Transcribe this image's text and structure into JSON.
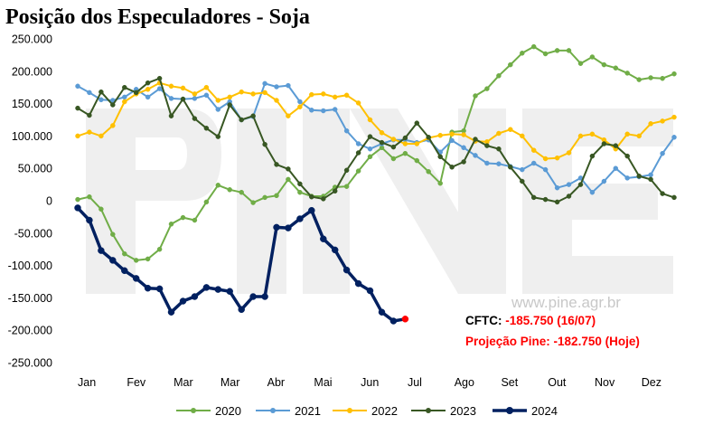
{
  "chart_data": {
    "type": "line",
    "title": "Posição dos Especuladores - Soja",
    "xlabel": "",
    "ylabel": "",
    "ylim": [
      -250000,
      250000
    ],
    "y_ticks": [
      250000,
      200000,
      150000,
      100000,
      50000,
      0,
      -50000,
      -100000,
      -150000,
      -200000,
      -250000
    ],
    "y_tick_labels": [
      "250.000",
      "200.000",
      "150.000",
      "100.000",
      "50.000",
      "0",
      "-50.000",
      "-100.000",
      "-150.000",
      "-200.000",
      "-250.000"
    ],
    "x_range_weeks": [
      1,
      53
    ],
    "month_labels": [
      "Jan",
      "Fev",
      "Mar",
      "Mar",
      "Abr",
      "Mai",
      "Jun",
      "Jul",
      "Ago",
      "Set",
      "Out",
      "Nov",
      "Dez"
    ],
    "month_label_weeks": [
      1,
      5.2,
      9.2,
      13.2,
      17.2,
      21.2,
      25.2,
      29.2,
      33.2,
      37.2,
      41.2,
      45.2,
      49.2
    ],
    "grid": false,
    "legend_position": "bottom",
    "annotations": [
      {
        "text": "CFTC: ",
        "value": "-185.750 (16/07)"
      },
      {
        "text": "Projeção Pine: ",
        "value": "-182.750 (Hoje)"
      }
    ],
    "watermark": {
      "text": "www.pine.agr.br",
      "logo": "PINE"
    },
    "series": [
      {
        "name": "2020",
        "color": "#70ad47",
        "width": 2,
        "marker": 5,
        "x": [
          1,
          2,
          3,
          4,
          5,
          6,
          7,
          8,
          9,
          10,
          11,
          12,
          13,
          14,
          15,
          16,
          17,
          18,
          19,
          20,
          21,
          22,
          23,
          24,
          25,
          26,
          27,
          28,
          29,
          30,
          31,
          32,
          33,
          34,
          35,
          36,
          37,
          38,
          39,
          40,
          41,
          42,
          43,
          44,
          45,
          46,
          47,
          48,
          49,
          50,
          51,
          52
        ],
        "values": [
          2000,
          6000,
          -13000,
          -52000,
          -82000,
          -92000,
          -90000,
          -75000,
          -36000,
          -26000,
          -30000,
          -2000,
          24000,
          17000,
          13000,
          -3000,
          5000,
          8000,
          33000,
          13000,
          7000,
          7000,
          21000,
          22000,
          46000,
          68000,
          82000,
          65000,
          73000,
          62000,
          45000,
          27000,
          106000,
          108000,
          162000,
          173000,
          193000,
          210000,
          228000,
          238000,
          227000,
          232000,
          232000,
          212000,
          222000,
          210000,
          205000,
          197000,
          187000,
          190000,
          189000,
          196000
        ]
      },
      {
        "name": "2021",
        "color": "#5b9bd5",
        "width": 2,
        "marker": 5,
        "x": [
          1,
          2,
          3,
          4,
          5,
          6,
          7,
          8,
          9,
          10,
          11,
          12,
          13,
          14,
          15,
          16,
          17,
          18,
          19,
          20,
          21,
          22,
          23,
          24,
          25,
          26,
          27,
          28,
          29,
          30,
          31,
          32,
          33,
          34,
          35,
          36,
          37,
          38,
          39,
          40,
          41,
          42,
          43,
          44,
          45,
          46,
          47,
          48,
          49,
          50,
          51,
          52
        ],
        "values": [
          177000,
          167000,
          156000,
          155000,
          160000,
          172000,
          160000,
          173000,
          158000,
          157000,
          158000,
          163000,
          141000,
          153000,
          125000,
          130000,
          181000,
          176000,
          178000,
          153000,
          140000,
          139000,
          141000,
          108000,
          88000,
          80000,
          88000,
          94000,
          94000,
          90000,
          94000,
          75000,
          93000,
          82000,
          70000,
          58000,
          57000,
          53000,
          48000,
          58000,
          48000,
          20000,
          25000,
          35000,
          13000,
          30000,
          50000,
          35000,
          37000,
          40000,
          73000,
          98000
        ]
      },
      {
        "name": "2022",
        "color": "#ffc000",
        "width": 2,
        "marker": 5,
        "x": [
          1,
          2,
          3,
          4,
          5,
          6,
          7,
          8,
          9,
          10,
          11,
          12,
          13,
          14,
          15,
          16,
          17,
          18,
          19,
          20,
          21,
          22,
          23,
          24,
          25,
          26,
          27,
          28,
          29,
          30,
          31,
          32,
          33,
          34,
          35,
          36,
          37,
          38,
          39,
          40,
          41,
          42,
          43,
          44,
          45,
          46,
          47,
          48,
          49,
          50,
          51,
          52
        ],
        "values": [
          100000,
          106000,
          100000,
          116000,
          153000,
          165000,
          172000,
          182000,
          177000,
          174000,
          165000,
          175000,
          155000,
          160000,
          168000,
          165000,
          167000,
          155000,
          131000,
          145000,
          164000,
          165000,
          160000,
          163000,
          151000,
          125000,
          105000,
          95000,
          88000,
          88000,
          97000,
          101000,
          103000,
          102000,
          92000,
          91000,
          104000,
          110000,
          100000,
          78000,
          65000,
          66000,
          74000,
          100000,
          103000,
          94000,
          80000,
          103000,
          100000,
          119000,
          123000,
          129000
        ]
      },
      {
        "name": "2023",
        "color": "#385723",
        "width": 2,
        "marker": 5,
        "x": [
          1,
          2,
          3,
          4,
          5,
          6,
          7,
          8,
          9,
          10,
          11,
          12,
          13,
          14,
          15,
          16,
          17,
          18,
          19,
          20,
          21,
          22,
          23,
          24,
          25,
          26,
          27,
          28,
          29,
          30,
          31,
          32,
          33,
          34,
          35,
          36,
          37,
          38,
          39,
          40,
          41,
          42,
          43,
          44,
          45,
          46,
          47,
          48,
          49,
          50,
          51,
          52
        ],
        "values": [
          143000,
          132000,
          168000,
          148000,
          175000,
          167000,
          182000,
          189000,
          131000,
          157000,
          127000,
          112000,
          99000,
          148000,
          125000,
          131000,
          87000,
          56000,
          49000,
          26000,
          6000,
          3000,
          15000,
          47000,
          74000,
          99000,
          90000,
          83000,
          97000,
          120000,
          98000,
          68000,
          52000,
          60000,
          95000,
          85000,
          80000,
          52000,
          30000,
          5000,
          2000,
          -2000,
          7000,
          25000,
          69000,
          88000,
          85000,
          69000,
          38000,
          33000,
          11000,
          5000
        ]
      },
      {
        "name": "2024",
        "color": "#002060",
        "width": 3.5,
        "marker": 7,
        "x": [
          1,
          2,
          3,
          4,
          5,
          6,
          7,
          8,
          9,
          10,
          11,
          12,
          13,
          14,
          15,
          16,
          17,
          18,
          19,
          20,
          21,
          22,
          23,
          24,
          25,
          26,
          27,
          28,
          29
        ],
        "values": [
          -11000,
          -30000,
          -77000,
          -92000,
          -108000,
          -120000,
          -135000,
          -136000,
          -172000,
          -155000,
          -148000,
          -134000,
          -137000,
          -140000,
          -168000,
          -148000,
          -148000,
          -41000,
          -42000,
          -28000,
          -15000,
          -59000,
          -76000,
          -107000,
          -128000,
          -139000,
          -172000,
          -185750,
          -182750
        ],
        "highlight_last": {
          "color": "#ff0000"
        }
      }
    ]
  }
}
